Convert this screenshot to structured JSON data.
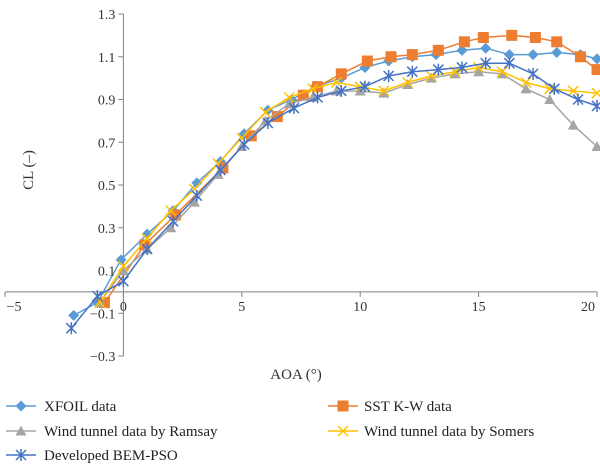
{
  "chart_data": {
    "type": "line",
    "xlabel": "AOA (°)",
    "ylabel": "CL (–)",
    "xlim": [
      -5,
      20
    ],
    "ylim": [
      -0.3,
      1.3
    ],
    "xticks": [
      -5,
      0,
      5,
      10,
      15,
      20
    ],
    "xtick_labels": [
      "−5",
      "0",
      "5",
      "10",
      "15",
      "20"
    ],
    "yticks": [
      -0.3,
      -0.1,
      0.1,
      0.3,
      0.5,
      0.7,
      0.9,
      1.1,
      1.3
    ],
    "ytick_labels": [
      "−0.3",
      "−0.1",
      "0.1",
      "0.3",
      "0.5",
      "0.7",
      "0.9",
      "1.1",
      "1.3"
    ],
    "grid": false,
    "legend_position": "bottom",
    "series": [
      {
        "name": "XFOIL data",
        "color": "#5b9bd5",
        "marker": "diamond",
        "x": [
          -2.1,
          -1.1,
          -0.1,
          1.0,
          2.1,
          3.1,
          4.1,
          5.1,
          6.1,
          7.1,
          8.1,
          9.2,
          10.2,
          11.2,
          12.2,
          13.2,
          14.3,
          15.3,
          16.3,
          17.3,
          18.3,
          19.3,
          20.0
        ],
        "y": [
          -0.11,
          -0.05,
          0.15,
          0.27,
          0.38,
          0.51,
          0.61,
          0.74,
          0.85,
          0.9,
          0.96,
          1.0,
          1.05,
          1.08,
          1.1,
          1.11,
          1.13,
          1.14,
          1.11,
          1.11,
          1.12,
          1.11,
          1.09
        ]
      },
      {
        "name": "SST K-W data",
        "color": "#ed7d31",
        "marker": "square",
        "x": [
          -0.8,
          0.9,
          2.2,
          4.2,
          5.4,
          6.5,
          7.6,
          8.2,
          9.2,
          10.3,
          11.3,
          12.2,
          13.3,
          14.4,
          15.2,
          16.4,
          17.4,
          18.3,
          19.3,
          20.0
        ],
        "y": [
          -0.05,
          0.22,
          0.36,
          0.58,
          0.73,
          0.82,
          0.92,
          0.96,
          1.02,
          1.08,
          1.1,
          1.11,
          1.13,
          1.17,
          1.19,
          1.2,
          1.19,
          1.17,
          1.1,
          1.04
        ]
      },
      {
        "name": "Wind tunnel data by Ramsay",
        "color": "#a5a5a5",
        "marker": "triangle",
        "x": [
          -1.0,
          0.0,
          1.0,
          2.0,
          3.0,
          4.0,
          5.0,
          6.0,
          7.0,
          8.0,
          9.0,
          10.0,
          11.0,
          12.0,
          13.0,
          14.0,
          15.0,
          16.0,
          17.0,
          18.0,
          19.0,
          20.0
        ],
        "y": [
          -0.05,
          0.1,
          0.2,
          0.3,
          0.42,
          0.55,
          0.68,
          0.8,
          0.88,
          0.91,
          0.94,
          0.94,
          0.93,
          0.97,
          1.0,
          1.02,
          1.03,
          1.02,
          0.95,
          0.9,
          0.78,
          0.68
        ]
      },
      {
        "name": "Wind tunnel data by Somers",
        "color": "#ffc000",
        "marker": "x",
        "x": [
          -1.0,
          0.0,
          1.0,
          2.0,
          3.0,
          4.0,
          5.0,
          6.0,
          7.0,
          8.0,
          9.0,
          10.0,
          11.0,
          12.0,
          13.0,
          14.0,
          15.0,
          16.0,
          17.0,
          18.0,
          19.0,
          20.0
        ],
        "y": [
          -0.05,
          0.12,
          0.25,
          0.38,
          0.48,
          0.6,
          0.72,
          0.84,
          0.91,
          0.95,
          0.98,
          0.96,
          0.94,
          0.98,
          1.01,
          1.03,
          1.05,
          1.03,
          0.98,
          0.95,
          0.94,
          0.93
        ]
      },
      {
        "name": "Developed BEM-PSO",
        "color": "#4472c4",
        "marker": "asterisk",
        "x": [
          -2.2,
          -1.1,
          0.0,
          1.0,
          2.1,
          3.1,
          4.1,
          5.1,
          6.1,
          7.2,
          8.2,
          9.2,
          10.2,
          11.2,
          12.2,
          13.3,
          14.3,
          15.3,
          16.3,
          17.3,
          18.2,
          19.2,
          20.0
        ],
        "y": [
          -0.17,
          -0.02,
          0.05,
          0.2,
          0.33,
          0.45,
          0.57,
          0.69,
          0.79,
          0.86,
          0.91,
          0.94,
          0.96,
          1.01,
          1.03,
          1.04,
          1.05,
          1.07,
          1.07,
          1.02,
          0.95,
          0.9,
          0.87
        ]
      }
    ]
  }
}
